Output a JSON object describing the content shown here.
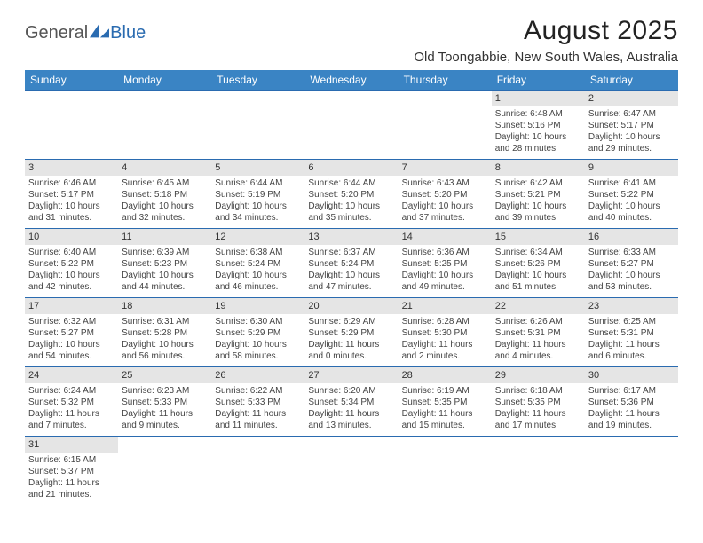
{
  "logo": {
    "text1": "General",
    "text2": "Blue"
  },
  "title": "August 2025",
  "location": "Old Toongabbie, New South Wales, Australia",
  "colors": {
    "header_bg": "#3a84c4",
    "header_fg": "#ffffff",
    "row_border": "#2a6bb0",
    "daynum_bg": "#e5e5e5",
    "logo_blue": "#2a6bb0"
  },
  "columns": [
    "Sunday",
    "Monday",
    "Tuesday",
    "Wednesday",
    "Thursday",
    "Friday",
    "Saturday"
  ],
  "weeks": [
    [
      {
        "n": "",
        "sr": "",
        "ss": "",
        "dl1": "",
        "dl2": ""
      },
      {
        "n": "",
        "sr": "",
        "ss": "",
        "dl1": "",
        "dl2": ""
      },
      {
        "n": "",
        "sr": "",
        "ss": "",
        "dl1": "",
        "dl2": ""
      },
      {
        "n": "",
        "sr": "",
        "ss": "",
        "dl1": "",
        "dl2": ""
      },
      {
        "n": "",
        "sr": "",
        "ss": "",
        "dl1": "",
        "dl2": ""
      },
      {
        "n": "1",
        "sr": "Sunrise: 6:48 AM",
        "ss": "Sunset: 5:16 PM",
        "dl1": "Daylight: 10 hours",
        "dl2": "and 28 minutes."
      },
      {
        "n": "2",
        "sr": "Sunrise: 6:47 AM",
        "ss": "Sunset: 5:17 PM",
        "dl1": "Daylight: 10 hours",
        "dl2": "and 29 minutes."
      }
    ],
    [
      {
        "n": "3",
        "sr": "Sunrise: 6:46 AM",
        "ss": "Sunset: 5:17 PM",
        "dl1": "Daylight: 10 hours",
        "dl2": "and 31 minutes."
      },
      {
        "n": "4",
        "sr": "Sunrise: 6:45 AM",
        "ss": "Sunset: 5:18 PM",
        "dl1": "Daylight: 10 hours",
        "dl2": "and 32 minutes."
      },
      {
        "n": "5",
        "sr": "Sunrise: 6:44 AM",
        "ss": "Sunset: 5:19 PM",
        "dl1": "Daylight: 10 hours",
        "dl2": "and 34 minutes."
      },
      {
        "n": "6",
        "sr": "Sunrise: 6:44 AM",
        "ss": "Sunset: 5:20 PM",
        "dl1": "Daylight: 10 hours",
        "dl2": "and 35 minutes."
      },
      {
        "n": "7",
        "sr": "Sunrise: 6:43 AM",
        "ss": "Sunset: 5:20 PM",
        "dl1": "Daylight: 10 hours",
        "dl2": "and 37 minutes."
      },
      {
        "n": "8",
        "sr": "Sunrise: 6:42 AM",
        "ss": "Sunset: 5:21 PM",
        "dl1": "Daylight: 10 hours",
        "dl2": "and 39 minutes."
      },
      {
        "n": "9",
        "sr": "Sunrise: 6:41 AM",
        "ss": "Sunset: 5:22 PM",
        "dl1": "Daylight: 10 hours",
        "dl2": "and 40 minutes."
      }
    ],
    [
      {
        "n": "10",
        "sr": "Sunrise: 6:40 AM",
        "ss": "Sunset: 5:22 PM",
        "dl1": "Daylight: 10 hours",
        "dl2": "and 42 minutes."
      },
      {
        "n": "11",
        "sr": "Sunrise: 6:39 AM",
        "ss": "Sunset: 5:23 PM",
        "dl1": "Daylight: 10 hours",
        "dl2": "and 44 minutes."
      },
      {
        "n": "12",
        "sr": "Sunrise: 6:38 AM",
        "ss": "Sunset: 5:24 PM",
        "dl1": "Daylight: 10 hours",
        "dl2": "and 46 minutes."
      },
      {
        "n": "13",
        "sr": "Sunrise: 6:37 AM",
        "ss": "Sunset: 5:24 PM",
        "dl1": "Daylight: 10 hours",
        "dl2": "and 47 minutes."
      },
      {
        "n": "14",
        "sr": "Sunrise: 6:36 AM",
        "ss": "Sunset: 5:25 PM",
        "dl1": "Daylight: 10 hours",
        "dl2": "and 49 minutes."
      },
      {
        "n": "15",
        "sr": "Sunrise: 6:34 AM",
        "ss": "Sunset: 5:26 PM",
        "dl1": "Daylight: 10 hours",
        "dl2": "and 51 minutes."
      },
      {
        "n": "16",
        "sr": "Sunrise: 6:33 AM",
        "ss": "Sunset: 5:27 PM",
        "dl1": "Daylight: 10 hours",
        "dl2": "and 53 minutes."
      }
    ],
    [
      {
        "n": "17",
        "sr": "Sunrise: 6:32 AM",
        "ss": "Sunset: 5:27 PM",
        "dl1": "Daylight: 10 hours",
        "dl2": "and 54 minutes."
      },
      {
        "n": "18",
        "sr": "Sunrise: 6:31 AM",
        "ss": "Sunset: 5:28 PM",
        "dl1": "Daylight: 10 hours",
        "dl2": "and 56 minutes."
      },
      {
        "n": "19",
        "sr": "Sunrise: 6:30 AM",
        "ss": "Sunset: 5:29 PM",
        "dl1": "Daylight: 10 hours",
        "dl2": "and 58 minutes."
      },
      {
        "n": "20",
        "sr": "Sunrise: 6:29 AM",
        "ss": "Sunset: 5:29 PM",
        "dl1": "Daylight: 11 hours",
        "dl2": "and 0 minutes."
      },
      {
        "n": "21",
        "sr": "Sunrise: 6:28 AM",
        "ss": "Sunset: 5:30 PM",
        "dl1": "Daylight: 11 hours",
        "dl2": "and 2 minutes."
      },
      {
        "n": "22",
        "sr": "Sunrise: 6:26 AM",
        "ss": "Sunset: 5:31 PM",
        "dl1": "Daylight: 11 hours",
        "dl2": "and 4 minutes."
      },
      {
        "n": "23",
        "sr": "Sunrise: 6:25 AM",
        "ss": "Sunset: 5:31 PM",
        "dl1": "Daylight: 11 hours",
        "dl2": "and 6 minutes."
      }
    ],
    [
      {
        "n": "24",
        "sr": "Sunrise: 6:24 AM",
        "ss": "Sunset: 5:32 PM",
        "dl1": "Daylight: 11 hours",
        "dl2": "and 7 minutes."
      },
      {
        "n": "25",
        "sr": "Sunrise: 6:23 AM",
        "ss": "Sunset: 5:33 PM",
        "dl1": "Daylight: 11 hours",
        "dl2": "and 9 minutes."
      },
      {
        "n": "26",
        "sr": "Sunrise: 6:22 AM",
        "ss": "Sunset: 5:33 PM",
        "dl1": "Daylight: 11 hours",
        "dl2": "and 11 minutes."
      },
      {
        "n": "27",
        "sr": "Sunrise: 6:20 AM",
        "ss": "Sunset: 5:34 PM",
        "dl1": "Daylight: 11 hours",
        "dl2": "and 13 minutes."
      },
      {
        "n": "28",
        "sr": "Sunrise: 6:19 AM",
        "ss": "Sunset: 5:35 PM",
        "dl1": "Daylight: 11 hours",
        "dl2": "and 15 minutes."
      },
      {
        "n": "29",
        "sr": "Sunrise: 6:18 AM",
        "ss": "Sunset: 5:35 PM",
        "dl1": "Daylight: 11 hours",
        "dl2": "and 17 minutes."
      },
      {
        "n": "30",
        "sr": "Sunrise: 6:17 AM",
        "ss": "Sunset: 5:36 PM",
        "dl1": "Daylight: 11 hours",
        "dl2": "and 19 minutes."
      }
    ],
    [
      {
        "n": "31",
        "sr": "Sunrise: 6:15 AM",
        "ss": "Sunset: 5:37 PM",
        "dl1": "Daylight: 11 hours",
        "dl2": "and 21 minutes."
      },
      {
        "n": "",
        "sr": "",
        "ss": "",
        "dl1": "",
        "dl2": ""
      },
      {
        "n": "",
        "sr": "",
        "ss": "",
        "dl1": "",
        "dl2": ""
      },
      {
        "n": "",
        "sr": "",
        "ss": "",
        "dl1": "",
        "dl2": ""
      },
      {
        "n": "",
        "sr": "",
        "ss": "",
        "dl1": "",
        "dl2": ""
      },
      {
        "n": "",
        "sr": "",
        "ss": "",
        "dl1": "",
        "dl2": ""
      },
      {
        "n": "",
        "sr": "",
        "ss": "",
        "dl1": "",
        "dl2": ""
      }
    ]
  ]
}
